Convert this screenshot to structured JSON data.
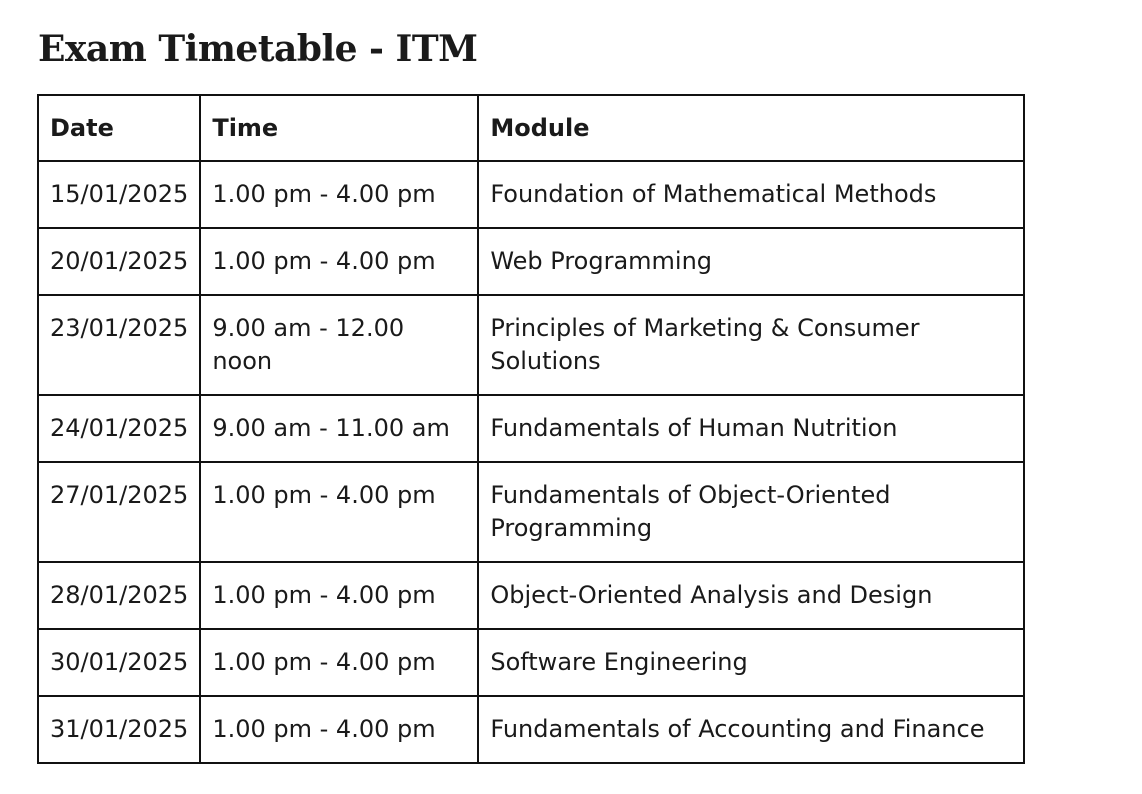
{
  "page": {
    "title": "Exam Timetable - ITM"
  },
  "table": {
    "headers": {
      "date": "Date",
      "time": "Time",
      "module": "Module"
    },
    "rows": [
      {
        "date": "15/01/2025",
        "time": "1.00 pm - 4.00 pm",
        "module": "Foundation of Mathematical Methods"
      },
      {
        "date": "20/01/2025",
        "time": "1.00 pm - 4.00 pm",
        "module": "Web Programming"
      },
      {
        "date": "23/01/2025",
        "time": "9.00 am - 12.00 noon",
        "module": "Principles of Marketing & Consumer Solutions"
      },
      {
        "date": "24/01/2025",
        "time": "9.00 am - 11.00 am",
        "module": "Fundamentals of Human Nutrition"
      },
      {
        "date": "27/01/2025",
        "time": "1.00 pm - 4.00 pm",
        "module": "Fundamentals of Object-Oriented Programming"
      },
      {
        "date": "28/01/2025",
        "time": "1.00 pm - 4.00 pm",
        "module": "Object-Oriented Analysis and Design"
      },
      {
        "date": "30/01/2025",
        "time": "1.00 pm - 4.00 pm",
        "module": "Software Engineering"
      },
      {
        "date": "31/01/2025",
        "time": "1.00 pm - 4.00 pm",
        "module": "Fundamentals of Accounting and Finance"
      }
    ]
  }
}
